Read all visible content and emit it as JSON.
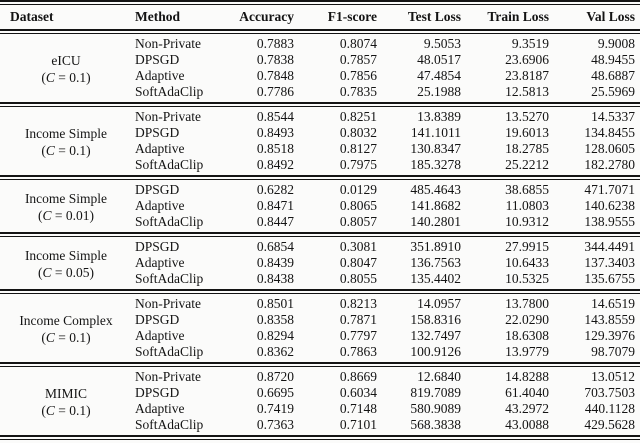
{
  "table": {
    "columns": [
      {
        "label": "Dataset"
      },
      {
        "label": "Method"
      },
      {
        "label": "Accuracy"
      },
      {
        "label": "F1-score"
      },
      {
        "label": "Test Loss"
      },
      {
        "label": "Train Loss"
      },
      {
        "label": "Val Loss"
      }
    ],
    "groups": [
      {
        "dataset": {
          "name": "eICU",
          "clip_open": "(",
          "clip_symbol": "C",
          "clip_rest": " = 0.1)"
        },
        "rows": [
          {
            "method": "Non-Private",
            "accuracy": "0.7883",
            "f1_score": "0.8074",
            "test_loss": "9.5053",
            "train_loss": "9.3519",
            "val_loss": "9.9008"
          },
          {
            "method": "DPSGD",
            "accuracy": "0.7838",
            "f1_score": "0.7857",
            "test_loss": "48.0517",
            "train_loss": "23.6906",
            "val_loss": "48.9455"
          },
          {
            "method": "Adaptive",
            "accuracy": "0.7848",
            "f1_score": "0.7856",
            "test_loss": "47.4854",
            "train_loss": "23.8187",
            "val_loss": "48.6887"
          },
          {
            "method": "SoftAdaClip",
            "accuracy": "0.7786",
            "f1_score": "0.7835",
            "test_loss": "25.1988",
            "train_loss": "12.5813",
            "val_loss": "25.5969"
          }
        ]
      },
      {
        "dataset": {
          "name": "Income Simple",
          "clip_open": "(",
          "clip_symbol": "C",
          "clip_rest": " = 0.1)"
        },
        "rows": [
          {
            "method": "Non-Private",
            "accuracy": "0.8544",
            "f1_score": "0.8251",
            "test_loss": "13.8389",
            "train_loss": "13.5270",
            "val_loss": "14.5337"
          },
          {
            "method": "DPSGD",
            "accuracy": "0.8493",
            "f1_score": "0.8032",
            "test_loss": "141.1011",
            "train_loss": "19.6013",
            "val_loss": "134.8455"
          },
          {
            "method": "Adaptive",
            "accuracy": "0.8518",
            "f1_score": "0.8127",
            "test_loss": "130.8347",
            "train_loss": "18.2785",
            "val_loss": "128.0605"
          },
          {
            "method": "SoftAdaClip",
            "accuracy": "0.8492",
            "f1_score": "0.7975",
            "test_loss": "185.3278",
            "train_loss": "25.2212",
            "val_loss": "182.2780"
          }
        ]
      },
      {
        "dataset": {
          "name": "Income Simple",
          "clip_open": "(",
          "clip_symbol": "C",
          "clip_rest": " = 0.01)"
        },
        "rows": [
          {
            "method": "DPSGD",
            "accuracy": "0.6282",
            "f1_score": "0.0129",
            "test_loss": "485.4643",
            "train_loss": "38.6855",
            "val_loss": "471.7071"
          },
          {
            "method": "Adaptive",
            "accuracy": "0.8471",
            "f1_score": "0.8065",
            "test_loss": "141.8682",
            "train_loss": "11.0803",
            "val_loss": "140.6238"
          },
          {
            "method": "SoftAdaClip",
            "accuracy": "0.8447",
            "f1_score": "0.8057",
            "test_loss": "140.2801",
            "train_loss": "10.9312",
            "val_loss": "138.9555"
          }
        ]
      },
      {
        "dataset": {
          "name": "Income Simple",
          "clip_open": "(",
          "clip_symbol": "C",
          "clip_rest": " = 0.05)"
        },
        "rows": [
          {
            "method": "DPSGD",
            "accuracy": "0.6854",
            "f1_score": "0.3081",
            "test_loss": "351.8910",
            "train_loss": "27.9915",
            "val_loss": "344.4491"
          },
          {
            "method": "Adaptive",
            "accuracy": "0.8439",
            "f1_score": "0.8047",
            "test_loss": "136.7563",
            "train_loss": "10.6433",
            "val_loss": "137.3403"
          },
          {
            "method": "SoftAdaClip",
            "accuracy": "0.8438",
            "f1_score": "0.8055",
            "test_loss": "135.4402",
            "train_loss": "10.5325",
            "val_loss": "135.6755"
          }
        ]
      },
      {
        "dataset": {
          "name": "Income Complex",
          "clip_open": "(",
          "clip_symbol": "C",
          "clip_rest": " = 0.1)"
        },
        "rows": [
          {
            "method": "Non-Private",
            "accuracy": "0.8501",
            "f1_score": "0.8213",
            "test_loss": "14.0957",
            "train_loss": "13.7800",
            "val_loss": "14.6519"
          },
          {
            "method": "DPSGD",
            "accuracy": "0.8358",
            "f1_score": "0.7871",
            "test_loss": "158.8316",
            "train_loss": "22.0290",
            "val_loss": "143.8559"
          },
          {
            "method": "Adaptive",
            "accuracy": "0.8294",
            "f1_score": "0.7797",
            "test_loss": "132.7497",
            "train_loss": "18.6308",
            "val_loss": "129.3976"
          },
          {
            "method": "SoftAdaClip",
            "accuracy": "0.8362",
            "f1_score": "0.7863",
            "test_loss": "100.9126",
            "train_loss": "13.9779",
            "val_loss": "98.7079"
          }
        ]
      },
      {
        "dataset": {
          "name": "MIMIC",
          "clip_open": "(",
          "clip_symbol": "C",
          "clip_rest": " = 0.1)"
        },
        "rows": [
          {
            "method": "Non-Private",
            "accuracy": "0.8720",
            "f1_score": "0.8669",
            "test_loss": "12.6840",
            "train_loss": "14.8288",
            "val_loss": "13.0512"
          },
          {
            "method": "DPSGD",
            "accuracy": "0.6695",
            "f1_score": "0.6034",
            "test_loss": "819.7089",
            "train_loss": "61.4040",
            "val_loss": "703.7503"
          },
          {
            "method": "Adaptive",
            "accuracy": "0.7419",
            "f1_score": "0.7148",
            "test_loss": "580.9089",
            "train_loss": "43.2972",
            "val_loss": "440.1128"
          },
          {
            "method": "SoftAdaClip",
            "accuracy": "0.7363",
            "f1_score": "0.7101",
            "test_loss": "568.3838",
            "train_loss": "43.0088",
            "val_loss": "429.5628"
          }
        ]
      }
    ],
    "rule_color": "#141414",
    "text_color": "#141414",
    "background_color": "#fbfbfa"
  }
}
